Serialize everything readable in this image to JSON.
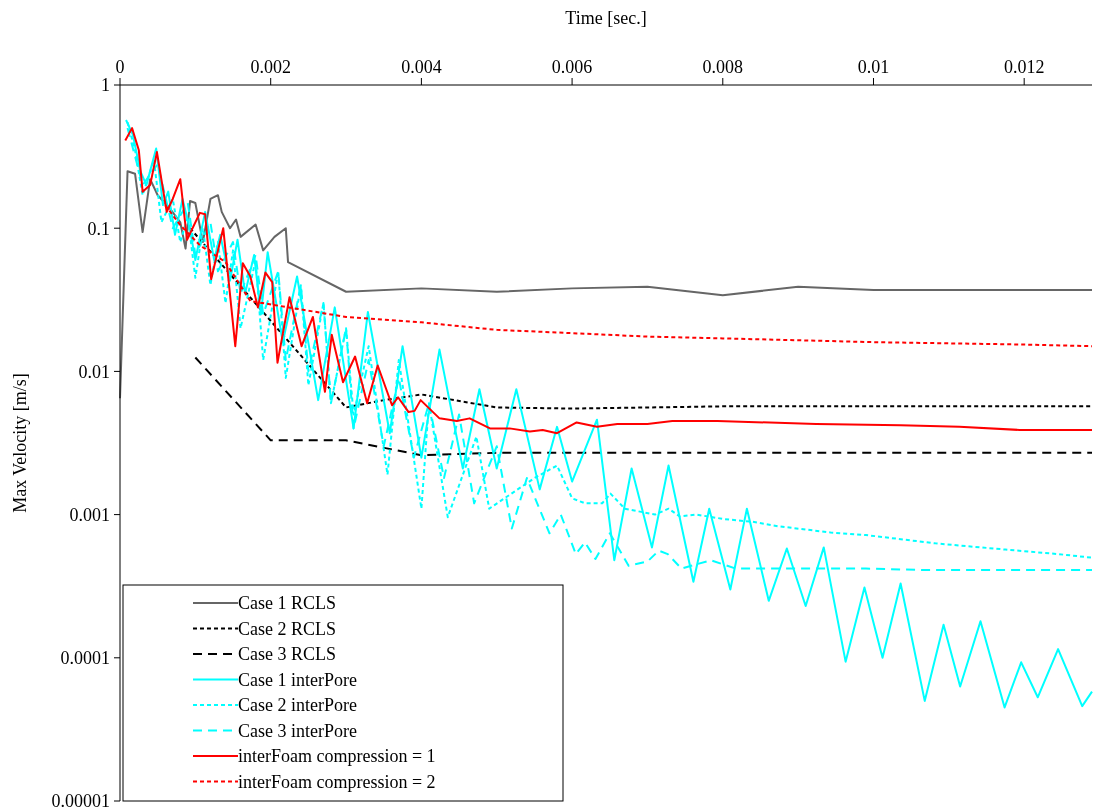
{
  "chart_data": {
    "type": "line",
    "xlabel": "Time  [sec.]",
    "ylabel": "Max Velocity [m/s]",
    "log": "y",
    "legend": "bottom left",
    "xlim": [
      0,
      0.0129
    ],
    "xticks": [
      0,
      0.002,
      0.004,
      0.006,
      0.008,
      0.01,
      0.012
    ],
    "ylim": [
      1e-05,
      1
    ],
    "yticks": [
      {
        "value": 1e-05,
        "label": "0.00001"
      },
      {
        "value": 0.0001,
        "label": "0.0001"
      },
      0.001,
      0.01,
      0.1,
      1
    ],
    "series": [
      {
        "name": "Case 1 RCLS",
        "color": "#666666",
        "line_style": "solid",
        "x": [
          0,
          0.0001,
          0.0002,
          0.0003,
          0.0004,
          0.0005,
          0.00065,
          0.0008,
          0.00087,
          0.00093,
          0.001,
          0.0011,
          0.0012,
          0.0013,
          0.00135,
          0.00146,
          0.00154,
          0.0016,
          0.0018,
          0.0019,
          0.00205,
          0.0022,
          0.00223,
          0.003,
          0.004,
          0.005,
          0.006,
          0.007,
          0.008,
          0.009,
          0.01,
          0.0129
        ],
        "values": [
          0.0065,
          0.25,
          0.24,
          0.094,
          0.22,
          0.17,
          0.14,
          0.11,
          0.072,
          0.155,
          0.15,
          0.08,
          0.16,
          0.17,
          0.13,
          0.1,
          0.115,
          0.087,
          0.106,
          0.07,
          0.087,
          0.1,
          0.058,
          0.036,
          0.038,
          0.036,
          0.038,
          0.039,
          0.034,
          0.039,
          0.037,
          0.037
        ]
      },
      {
        "name": "Case 2 RCLS",
        "color": "#000000",
        "line_style": "dotted",
        "x": [
          0.00093,
          0.003,
          0.0035,
          0.004,
          0.005,
          0.006,
          0.008,
          0.0129
        ],
        "values": [
          0.1,
          0.0056,
          0.0063,
          0.0069,
          0.0056,
          0.0055,
          0.0057,
          0.0057
        ]
      },
      {
        "name": "Case 3 RCLS",
        "color": "#000000",
        "line_style": "dashed",
        "x": [
          0.001,
          0.002,
          0.003,
          0.004,
          0.005,
          0.0129
        ],
        "values": [
          0.0125,
          0.0033,
          0.0033,
          0.0026,
          0.0027,
          0.0027
        ]
      },
      {
        "name": "Case 1 interPore",
        "color": "#00ffff",
        "line_style": "solid",
        "x": [
          8e-05,
          0.00017,
          0.00027,
          0.00035,
          0.00048,
          0.00057,
          0.00064,
          0.00073,
          0.00083,
          0.00093,
          0.001,
          0.00113,
          0.00125,
          0.00133,
          0.00146,
          0.00156,
          0.00166,
          0.00178,
          0.00187,
          0.00196,
          0.00216,
          0.00235,
          0.00263,
          0.00285,
          0.0031,
          0.00329,
          0.00358,
          0.00375,
          0.004,
          0.00424,
          0.00455,
          0.00477,
          0.005,
          0.00526,
          0.00557,
          0.0058,
          0.006,
          0.00633,
          0.00656,
          0.00679,
          0.00706,
          0.00728,
          0.00761,
          0.00782,
          0.0081,
          0.00832,
          0.00861,
          0.00885,
          0.0091,
          0.00934,
          0.00963,
          0.00988,
          0.01012,
          0.01036,
          0.01068,
          0.01093,
          0.01115,
          0.01142,
          0.01174,
          0.01196,
          0.01218,
          0.01245,
          0.01277,
          0.0129
        ],
        "values": [
          0.57,
          0.45,
          0.25,
          0.2,
          0.36,
          0.145,
          0.18,
          0.09,
          0.16,
          0.097,
          0.06,
          0.13,
          0.06,
          0.09,
          0.043,
          0.083,
          0.035,
          0.065,
          0.025,
          0.068,
          0.016,
          0.046,
          0.0063,
          0.028,
          0.004,
          0.026,
          0.0037,
          0.015,
          0.0025,
          0.0142,
          0.0021,
          0.0075,
          0.0021,
          0.0075,
          0.0015,
          0.0041,
          0.0017,
          0.0046,
          0.00048,
          0.0021,
          0.00059,
          0.0022,
          0.00034,
          0.0011,
          0.0003,
          0.0011,
          0.00025,
          0.00058,
          0.00023,
          0.00059,
          9.4e-05,
          0.00031,
          0.0001,
          0.00033,
          5e-05,
          0.00017,
          6.3e-05,
          0.00018,
          4.5e-05,
          9.3e-05,
          5.3e-05,
          0.000115,
          4.6e-05,
          5.8e-05
        ]
      },
      {
        "name": "Case 2 interPore",
        "color": "#00ffff",
        "line_style": "dotted",
        "x": [
          0.0001,
          0.0002,
          0.0003,
          0.00045,
          0.00055,
          0.0007,
          0.0008,
          0.0009,
          0.001,
          0.0011,
          0.0012,
          0.0013,
          0.0014,
          0.0015,
          0.0016,
          0.0018,
          0.0019,
          0.0021,
          0.0022,
          0.0024,
          0.0025,
          0.0027,
          0.0028,
          0.003,
          0.0031,
          0.0033,
          0.00355,
          0.0037,
          0.004,
          0.0041,
          0.00435,
          0.00473,
          0.0049,
          0.0055,
          0.0058,
          0.006,
          0.00617,
          0.0064,
          0.00651,
          0.0067,
          0.0071,
          0.00728,
          0.00743,
          0.00765,
          0.00802,
          0.0084,
          0.00873,
          0.00943,
          0.0099,
          0.01082,
          0.01175,
          0.01245,
          0.0129
        ],
        "values": [
          0.55,
          0.35,
          0.17,
          0.3,
          0.11,
          0.16,
          0.08,
          0.12,
          0.045,
          0.1,
          0.04,
          0.08,
          0.03,
          0.07,
          0.02,
          0.06,
          0.012,
          0.05,
          0.009,
          0.04,
          0.008,
          0.03,
          0.006,
          0.02,
          0.005,
          0.015,
          0.0019,
          0.012,
          0.0011,
          0.006,
          0.00096,
          0.0035,
          0.0011,
          0.0018,
          0.0022,
          0.0013,
          0.0012,
          0.0012,
          0.0014,
          0.0011,
          0.001,
          0.0011,
          0.00097,
          0.001,
          0.00093,
          0.00089,
          0.00083,
          0.00075,
          0.00072,
          0.00063,
          0.00057,
          0.00053,
          0.0005
        ]
      },
      {
        "name": "Case 3 interPore",
        "color": "#00ffff",
        "line_style": "dashed",
        "x": [
          0.0001,
          0.0003,
          0.0005,
          0.0007,
          0.0009,
          0.001,
          0.0012,
          0.0013,
          0.0015,
          0.0016,
          0.0018,
          0.0019,
          0.0021,
          0.0022,
          0.0024,
          0.0025,
          0.0027,
          0.0028,
          0.003,
          0.0031,
          0.0033,
          0.0035,
          0.0037,
          0.0039,
          0.0041,
          0.0043,
          0.0045,
          0.0047,
          0.005,
          0.0052,
          0.0054,
          0.0057,
          0.00585,
          0.00605,
          0.00617,
          0.00631,
          0.0065,
          0.00675,
          0.007,
          0.00715,
          0.00727,
          0.00745,
          0.00784,
          0.00817,
          0.0099,
          0.01068,
          0.0129
        ],
        "values": [
          0.5,
          0.2,
          0.28,
          0.1,
          0.15,
          0.065,
          0.11,
          0.05,
          0.08,
          0.035,
          0.065,
          0.025,
          0.05,
          0.012,
          0.04,
          0.01,
          0.03,
          0.006,
          0.02,
          0.004,
          0.012,
          0.003,
          0.009,
          0.0025,
          0.006,
          0.0018,
          0.005,
          0.0012,
          0.003,
          0.0008,
          0.0018,
          0.00074,
          0.001,
          0.00053,
          0.00064,
          0.00049,
          0.00074,
          0.00044,
          0.00047,
          0.00056,
          0.00053,
          0.00042,
          0.00048,
          0.00042,
          0.00042,
          0.00041,
          0.00041
        ]
      },
      {
        "name": "interFoam compression = 1",
        "color": "#ff0000",
        "line_style": "solid",
        "x": [
          7e-05,
          0.00016,
          0.00025,
          0.0003,
          0.0004,
          0.00049,
          0.00062,
          0.0007,
          0.0008,
          0.00089,
          0.00106,
          0.00113,
          0.00121,
          0.00137,
          0.00153,
          0.00163,
          0.00173,
          0.00183,
          0.00193,
          0.00202,
          0.00209,
          0.00225,
          0.00241,
          0.00256,
          0.00272,
          0.00281,
          0.00296,
          0.00312,
          0.00328,
          0.00342,
          0.00361,
          0.00369,
          0.00383,
          0.00391,
          0.00399,
          0.00424,
          0.00447,
          0.00464,
          0.00491,
          0.00517,
          0.00544,
          0.00561,
          0.0058,
          0.00606,
          0.00633,
          0.0066,
          0.007,
          0.00733,
          0.00793,
          0.00924,
          0.01036,
          0.01114,
          0.01194,
          0.0129
        ],
        "values": [
          0.41,
          0.5,
          0.35,
          0.18,
          0.2,
          0.34,
          0.13,
          0.16,
          0.22,
          0.083,
          0.128,
          0.125,
          0.044,
          0.1,
          0.015,
          0.057,
          0.046,
          0.028,
          0.049,
          0.042,
          0.0115,
          0.033,
          0.015,
          0.024,
          0.0072,
          0.018,
          0.0084,
          0.0127,
          0.006,
          0.011,
          0.0058,
          0.0066,
          0.0052,
          0.0053,
          0.0063,
          0.0047,
          0.0045,
          0.0047,
          0.004,
          0.004,
          0.0038,
          0.0039,
          0.0037,
          0.0044,
          0.0041,
          0.0043,
          0.0043,
          0.0045,
          0.0045,
          0.0043,
          0.0042,
          0.0041,
          0.0039,
          0.0039
        ]
      },
      {
        "name": "interFoam compression = 2",
        "color": "#ff0000",
        "line_style": "dotted",
        "x": [
          0.0006,
          0.0008,
          0.00106,
          0.0014,
          0.00173,
          0.003,
          0.004,
          0.005,
          0.006,
          0.007,
          0.008,
          0.009,
          0.01,
          0.011,
          0.012,
          0.0129
        ],
        "values": [
          0.145,
          0.105,
          0.076,
          0.058,
          0.031,
          0.024,
          0.022,
          0.0195,
          0.0185,
          0.0175,
          0.017,
          0.0165,
          0.016,
          0.0157,
          0.0154,
          0.015
        ]
      }
    ]
  }
}
